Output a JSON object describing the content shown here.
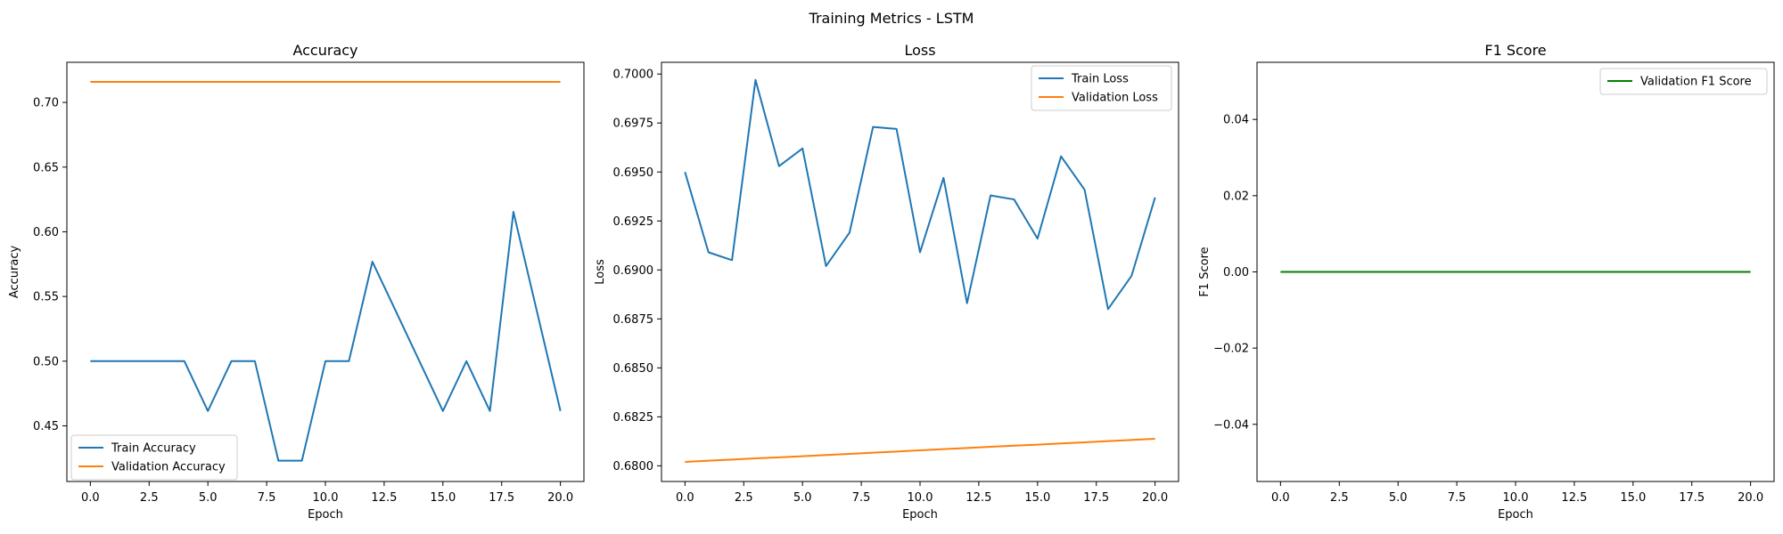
{
  "figure": {
    "suptitle": "Training Metrics - LSTM"
  },
  "chart_data": [
    {
      "type": "line",
      "title": "Accuracy",
      "xlabel": "Epoch",
      "ylabel": "Accuracy",
      "xlim": [
        -1.0,
        21.0
      ],
      "ylim": [
        0.407,
        0.731
      ],
      "xticks": [
        0.0,
        2.5,
        5.0,
        7.5,
        10.0,
        12.5,
        15.0,
        17.5,
        20.0
      ],
      "xtick_labels": [
        "0.0",
        "2.5",
        "5.0",
        "7.5",
        "10.0",
        "12.5",
        "15.0",
        "17.5",
        "20.0"
      ],
      "yticks": [
        0.45,
        0.5,
        0.55,
        0.6,
        0.65,
        0.7
      ],
      "ytick_labels": [
        "0.45",
        "0.50",
        "0.55",
        "0.60",
        "0.65",
        "0.70"
      ],
      "grid": false,
      "legend_position": "lower-left",
      "x": [
        0,
        1,
        2,
        3,
        4,
        5,
        6,
        7,
        8,
        9,
        10,
        11,
        12,
        13,
        14,
        15,
        16,
        17,
        18,
        19,
        20
      ],
      "series": [
        {
          "name": "Train Accuracy",
          "color": "#1f77b4",
          "values": [
            0.5,
            0.5,
            0.5,
            0.5,
            0.5,
            0.4615,
            0.5,
            0.5,
            0.4231,
            0.4231,
            0.5,
            0.5,
            0.5769,
            0.5385,
            0.5,
            0.4615,
            0.5,
            0.4615,
            0.6154,
            0.5385,
            0.4615
          ]
        },
        {
          "name": "Validation Accuracy",
          "color": "#ff7f0e",
          "values": [
            0.7159,
            0.7159,
            0.7159,
            0.7159,
            0.7159,
            0.7159,
            0.7159,
            0.7159,
            0.7159,
            0.7159,
            0.7159,
            0.7159,
            0.7159,
            0.7159,
            0.7159,
            0.7159,
            0.7159,
            0.7159,
            0.7159,
            0.7159,
            0.7159
          ]
        }
      ]
    },
    {
      "type": "line",
      "title": "Loss",
      "xlabel": "Epoch",
      "ylabel": "Loss",
      "xlim": [
        -1.0,
        21.0
      ],
      "ylim": [
        0.6792,
        0.7006
      ],
      "xticks": [
        0.0,
        2.5,
        5.0,
        7.5,
        10.0,
        12.5,
        15.0,
        17.5,
        20.0
      ],
      "xtick_labels": [
        "0.0",
        "2.5",
        "5.0",
        "7.5",
        "10.0",
        "12.5",
        "15.0",
        "17.5",
        "20.0"
      ],
      "yticks": [
        0.68,
        0.6825,
        0.685,
        0.6875,
        0.69,
        0.6925,
        0.695,
        0.6975,
        0.7
      ],
      "ytick_labels": [
        "0.6800",
        "0.6825",
        "0.6850",
        "0.6875",
        "0.6900",
        "0.6925",
        "0.6950",
        "0.6975",
        "0.7000"
      ],
      "grid": false,
      "legend_position": "top-right",
      "x": [
        0,
        1,
        2,
        3,
        4,
        5,
        6,
        7,
        8,
        9,
        10,
        11,
        12,
        13,
        14,
        15,
        16,
        17,
        18,
        19,
        20
      ],
      "series": [
        {
          "name": "Train Loss",
          "color": "#1f77b4",
          "values": [
            0.695,
            0.6909,
            0.6905,
            0.6997,
            0.6953,
            0.6962,
            0.6902,
            0.6919,
            0.6973,
            0.6972,
            0.6909,
            0.6947,
            0.6883,
            0.6938,
            0.6936,
            0.6916,
            0.6958,
            0.6941,
            0.688,
            0.6897,
            0.6937
          ]
        },
        {
          "name": "Validation Loss",
          "color": "#ff7f0e",
          "values": [
            0.6802,
            0.68026,
            0.68032,
            0.68038,
            0.68043,
            0.68049,
            0.68055,
            0.68061,
            0.68067,
            0.68073,
            0.68079,
            0.68085,
            0.68091,
            0.68097,
            0.68103,
            0.68108,
            0.68114,
            0.6812,
            0.68126,
            0.68132,
            0.68138
          ]
        }
      ]
    },
    {
      "type": "line",
      "title": "F1 Score",
      "xlabel": "Epoch",
      "ylabel": "F1 Score",
      "xlim": [
        -1.0,
        21.0
      ],
      "ylim": [
        -0.055,
        0.055
      ],
      "xticks": [
        0.0,
        2.5,
        5.0,
        7.5,
        10.0,
        12.5,
        15.0,
        17.5,
        20.0
      ],
      "xtick_labels": [
        "0.0",
        "2.5",
        "5.0",
        "7.5",
        "10.0",
        "12.5",
        "15.0",
        "17.5",
        "20.0"
      ],
      "yticks": [
        -0.04,
        -0.02,
        0.0,
        0.02,
        0.04
      ],
      "ytick_labels": [
        "−0.04",
        "−0.02",
        "0.00",
        "0.02",
        "0.04"
      ],
      "grid": false,
      "legend_position": "top-right",
      "x": [
        0,
        1,
        2,
        3,
        4,
        5,
        6,
        7,
        8,
        9,
        10,
        11,
        12,
        13,
        14,
        15,
        16,
        17,
        18,
        19,
        20
      ],
      "series": [
        {
          "name": "Validation F1 Score",
          "color": "#008000",
          "values": [
            0,
            0,
            0,
            0,
            0,
            0,
            0,
            0,
            0,
            0,
            0,
            0,
            0,
            0,
            0,
            0,
            0,
            0,
            0,
            0,
            0
          ]
        }
      ]
    }
  ]
}
